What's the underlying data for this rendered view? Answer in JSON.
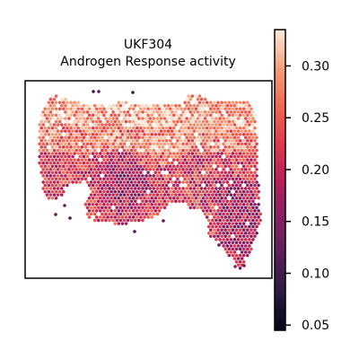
{
  "chart_data": {
    "type": "scatter",
    "title_line1": "UKF304",
    "title_line2": "Androgen Response activity",
    "xlabel": "",
    "ylabel": "",
    "grid": false,
    "axes_ticks": false,
    "marker": "hexagon",
    "colormap": "rocket",
    "colorbar": {
      "min": 0.045,
      "max": 0.335,
      "ticks": [
        0.05,
        0.1,
        0.15,
        0.2,
        0.25,
        0.3
      ],
      "tick_labels": [
        "0.05",
        "0.10",
        "0.15",
        "0.20",
        "0.25",
        "0.30"
      ]
    },
    "tissue_description": "spatial transcriptomics spots; higher activity along upper band, lower values in central/lower regions"
  }
}
